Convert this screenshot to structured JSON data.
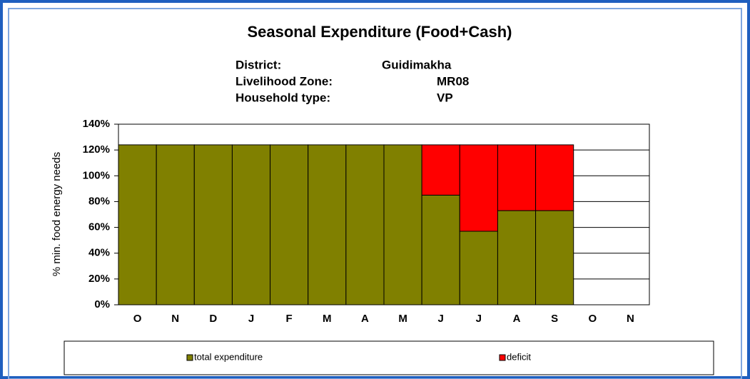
{
  "chart_data": {
    "type": "stacked_bar",
    "title": "Seasonal Expenditure (Food+Cash)",
    "info": [
      [
        "District:",
        "Guidimakha"
      ],
      [
        "Livelihood Zone:",
        "MR08"
      ],
      [
        "Household type:",
        "VP"
      ]
    ],
    "y_label": "% min. food energy needs",
    "categories": [
      "O",
      "N",
      "D",
      "J",
      "F",
      "M",
      "A",
      "M",
      "J",
      "J",
      "A",
      "S",
      "O",
      "N"
    ],
    "series": [
      {
        "name": "total expenditure",
        "color": "#808000",
        "values": [
          124,
          124,
          124,
          124,
          124,
          124,
          124,
          124,
          85,
          57,
          73,
          73,
          null,
          null
        ]
      },
      {
        "name": "deficit",
        "color": "#ff0000",
        "values": [
          0,
          0,
          0,
          0,
          0,
          0,
          0,
          0,
          39,
          67,
          51,
          51,
          null,
          null
        ]
      }
    ],
    "ylim": [
      0,
      140
    ],
    "yticks": [
      {
        "value": 0,
        "label": "0%"
      },
      {
        "value": 20,
        "label": "20%"
      },
      {
        "value": 40,
        "label": "40%"
      },
      {
        "value": 60,
        "label": "60%"
      },
      {
        "value": 80,
        "label": "80%"
      },
      {
        "value": 100,
        "label": "100%"
      },
      {
        "value": 120,
        "label": "120%"
      },
      {
        "value": 140,
        "label": "140%"
      }
    ],
    "grid": true,
    "legend": "bottom"
  }
}
